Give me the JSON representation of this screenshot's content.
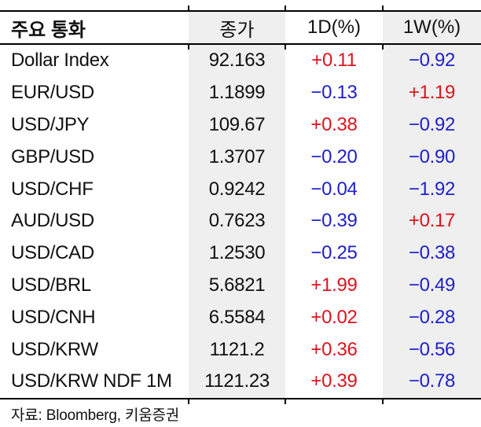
{
  "header": {
    "title": "주요 통화",
    "columns": [
      "종가",
      "1D(%)",
      "1W(%)"
    ]
  },
  "rows": [
    [
      "Dollar Index",
      "92.163",
      "+0.11",
      "−0.92"
    ],
    [
      "EUR/USD",
      "1.1899",
      "−0.13",
      "+1.19"
    ],
    [
      "USD/JPY",
      "109.67",
      "+0.38",
      "−0.92"
    ],
    [
      "GBP/USD",
      "1.3707",
      "−0.20",
      "−0.90"
    ],
    [
      "USD/CHF",
      "0.9242",
      "−0.04",
      "−1.92"
    ],
    [
      "AUD/USD",
      "0.7623",
      "−0.39",
      "+0.17"
    ],
    [
      "USD/CAD",
      "1.2530",
      "−0.25",
      "−0.38"
    ],
    [
      "USD/BRL",
      "5.6821",
      "+1.99",
      "−0.49"
    ],
    [
      "USD/CNH",
      "6.5584",
      "+0.02",
      "−0.28"
    ],
    [
      "USD/KRW",
      "1121.2",
      "+0.36",
      "−0.56"
    ],
    [
      "USD/KRW NDF 1M",
      "1121.23",
      "+0.39",
      "−0.78"
    ]
  ],
  "footer": {
    "source": "자료: Bloomberg,  키움증권"
  },
  "colors": {
    "positive": "#dc141e",
    "negative": "#2020cc",
    "shaded_column_bg": "#efefef",
    "text": "#111111",
    "rule": "#000000"
  },
  "chart_data": {
    "type": "table",
    "title": "주요 통화",
    "columns": [
      "주요 통화",
      "종가",
      "1D(%)",
      "1W(%)"
    ],
    "rows": [
      {
        "currency": "Dollar Index",
        "close": 92.163,
        "change_1d_pct": 0.11,
        "change_1w_pct": -0.92
      },
      {
        "currency": "EUR/USD",
        "close": 1.1899,
        "change_1d_pct": -0.13,
        "change_1w_pct": 1.19
      },
      {
        "currency": "USD/JPY",
        "close": 109.67,
        "change_1d_pct": 0.38,
        "change_1w_pct": -0.92
      },
      {
        "currency": "GBP/USD",
        "close": 1.3707,
        "change_1d_pct": -0.2,
        "change_1w_pct": -0.9
      },
      {
        "currency": "USD/CHF",
        "close": 0.9242,
        "change_1d_pct": -0.04,
        "change_1w_pct": -1.92
      },
      {
        "currency": "AUD/USD",
        "close": 0.7623,
        "change_1d_pct": -0.39,
        "change_1w_pct": 0.17
      },
      {
        "currency": "USD/CAD",
        "close": 1.253,
        "change_1d_pct": -0.25,
        "change_1w_pct": -0.38
      },
      {
        "currency": "USD/BRL",
        "close": 5.6821,
        "change_1d_pct": 1.99,
        "change_1w_pct": -0.49
      },
      {
        "currency": "USD/CNH",
        "close": 6.5584,
        "change_1d_pct": 0.02,
        "change_1w_pct": -0.28
      },
      {
        "currency": "USD/KRW",
        "close": 1121.2,
        "change_1d_pct": 0.36,
        "change_1w_pct": -0.56
      },
      {
        "currency": "USD/KRW NDF 1M",
        "close": 1121.23,
        "change_1d_pct": 0.39,
        "change_1w_pct": -0.78
      }
    ],
    "color_coding": "positive values red, negative values blue",
    "source": "자료: Bloomberg,  키움증권"
  }
}
